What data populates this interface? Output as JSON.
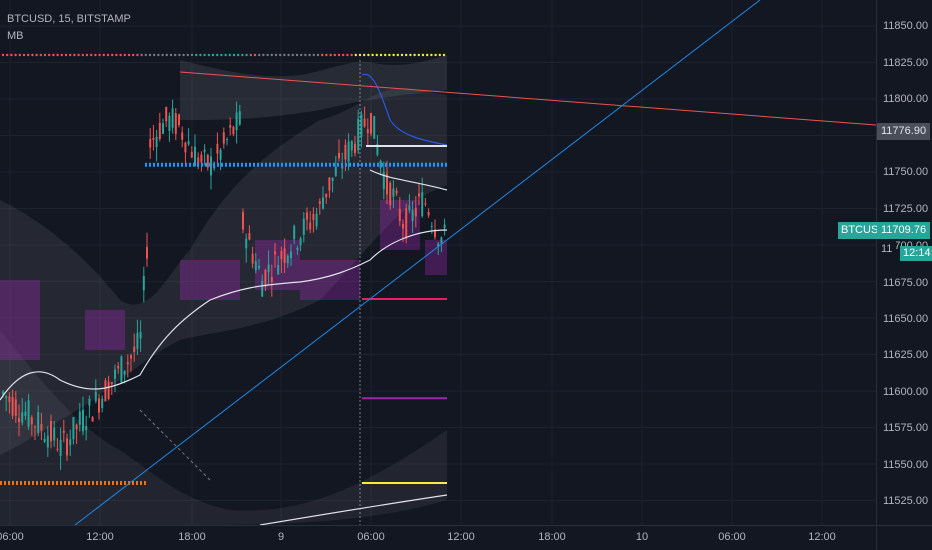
{
  "legend": {
    "symbol_line": "BTCUSD, 15, BITSTAMP",
    "indicator": "MB"
  },
  "colors": {
    "background": "#131722",
    "up": "#26a69a",
    "down": "#ef5350",
    "white_line": "#e0e3eb",
    "blue_line": "#2962ff",
    "trend_red": "#ef5350",
    "trend_blue": "#1e88e5",
    "level_blue": "#2196f3",
    "level_orange": "#ff6d00",
    "level_pink": "#e91e63",
    "level_purple": "#9c27b0",
    "level_yellow": "#ffeb3b",
    "band_fill": "#787b86",
    "purple_fill": "#9c27b0"
  },
  "price_axis": {
    "ticks": [
      "11850.00",
      "11825.00",
      "11800.00",
      "11750.00",
      "11725.00",
      "11700.00",
      "11675.00",
      "11650.00",
      "11625.00",
      "11600.00",
      "11575.00",
      "11550.00",
      "11525.00"
    ],
    "current_price_label": "11776.90",
    "symbol_tag_label": "BTCUSD",
    "last_price_label": "11709.76",
    "hidden_price_fragment": "11",
    "countdown": "12:14"
  },
  "time_axis": {
    "ticks": [
      "06:00",
      "12:00",
      "18:00",
      "9",
      "06:00",
      "12:00",
      "18:00",
      "10",
      "06:00",
      "12:00"
    ]
  },
  "chart_data": {
    "type": "candlestick",
    "symbol": "BTCUSD",
    "interval": "15",
    "exchange": "BITSTAMP",
    "ylim": [
      11505,
      11868
    ],
    "last_price": 11709.76,
    "levels": [
      {
        "price": 11755,
        "color": "blue"
      },
      {
        "price": 11537,
        "color": "orange"
      },
      {
        "price": 11663,
        "color": "pink"
      },
      {
        "price": 11595,
        "color": "purple"
      },
      {
        "price": 11537,
        "color": "yellow"
      }
    ]
  }
}
